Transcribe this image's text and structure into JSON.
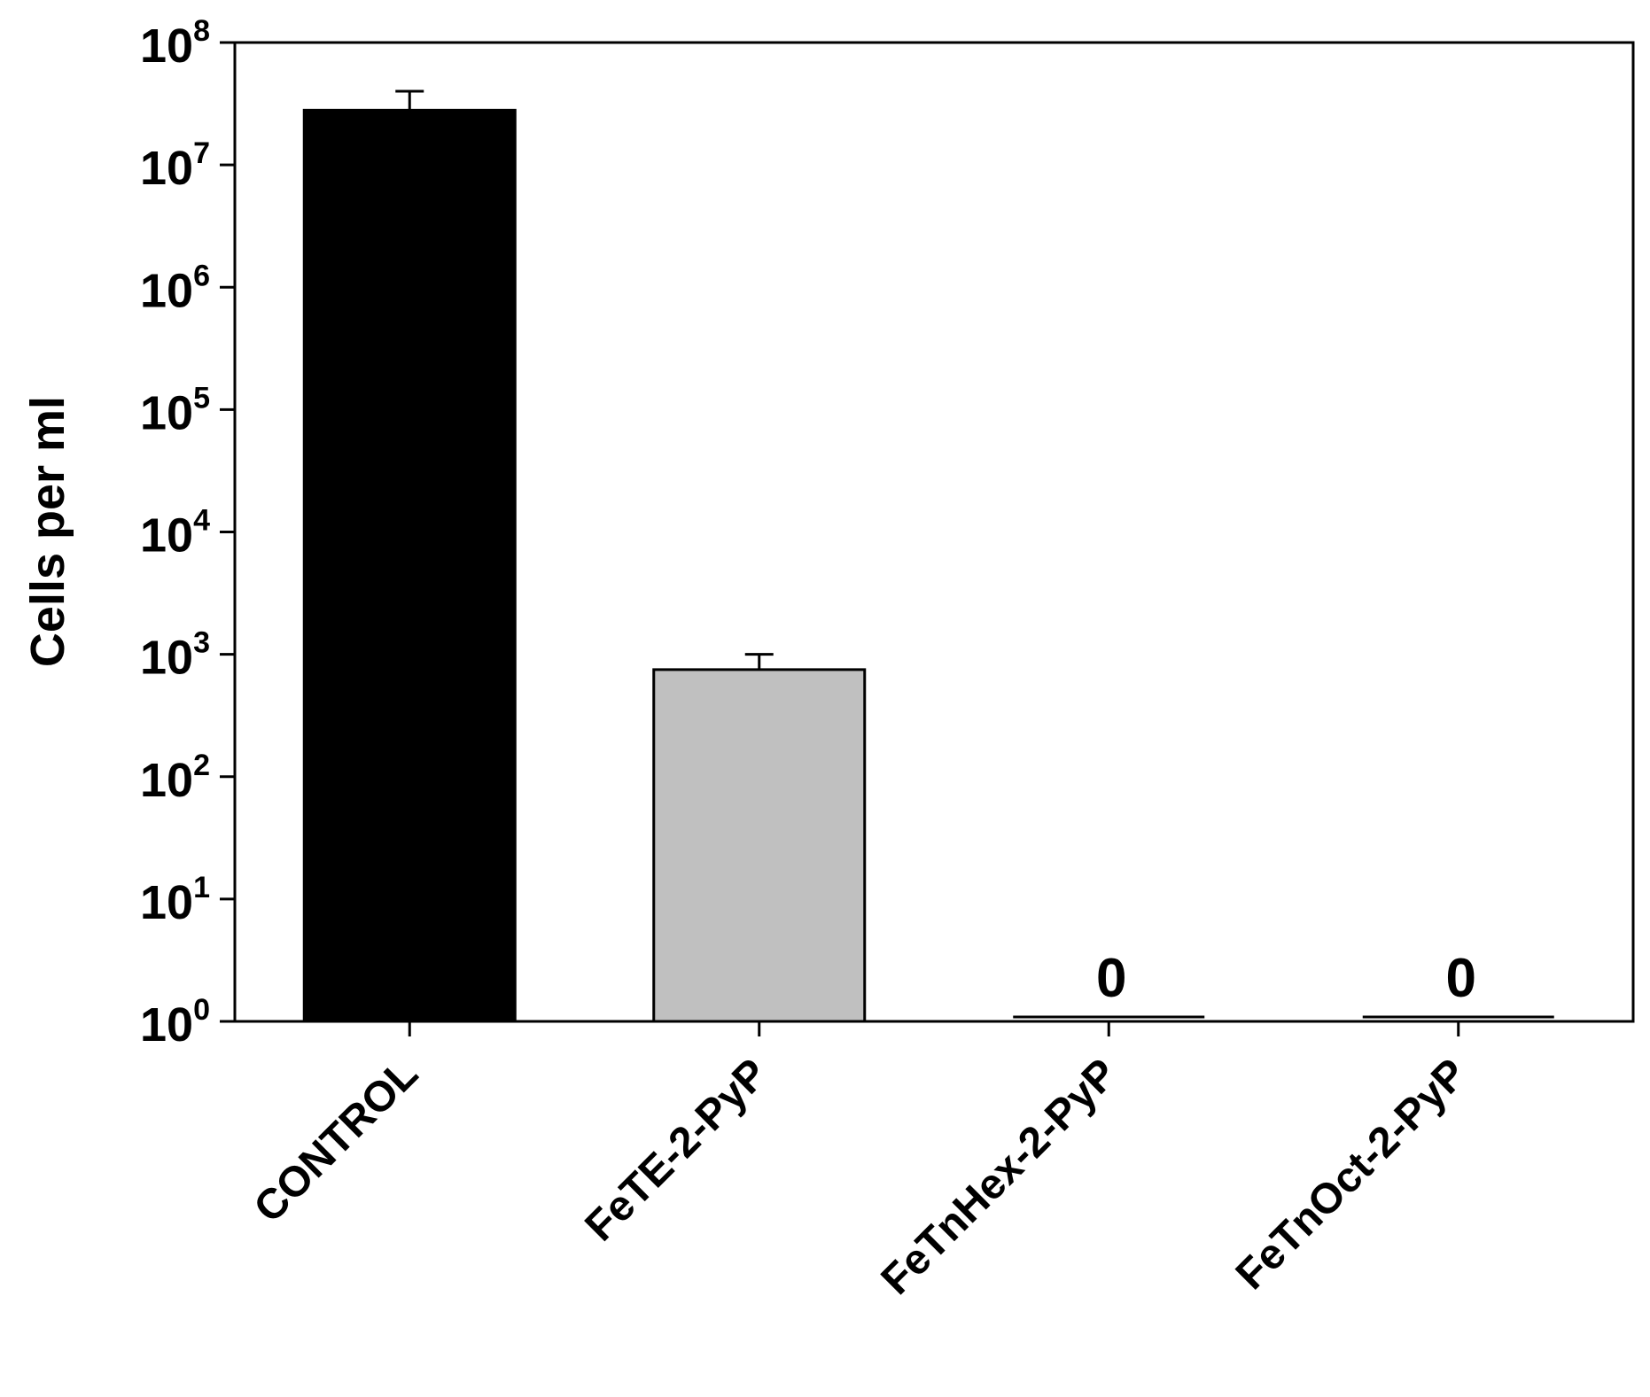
{
  "chart_data": {
    "type": "bar",
    "title": "",
    "xlabel": "",
    "ylabel": "Cells per ml",
    "yscale": "log",
    "ylim": [
      1,
      100000000
    ],
    "ytick_exponents": [
      0,
      1,
      2,
      3,
      4,
      5,
      6,
      7,
      8
    ],
    "ytick_base": "10",
    "categories": [
      "CONTROL",
      "FeTE-2-PyP",
      "FeTnHex-2-PyP",
      "FeTnOct-2-PyP"
    ],
    "series": [
      {
        "values": [
          28000000,
          750,
          0,
          0
        ],
        "error_upper": [
          40000000,
          1000,
          null,
          null
        ],
        "colors": [
          "#000000",
          "#c0c0c0",
          "#000000",
          "#000000"
        ]
      }
    ],
    "data_labels": [
      "",
      "",
      "0",
      "0"
    ],
    "grid": false,
    "legend": "none"
  }
}
